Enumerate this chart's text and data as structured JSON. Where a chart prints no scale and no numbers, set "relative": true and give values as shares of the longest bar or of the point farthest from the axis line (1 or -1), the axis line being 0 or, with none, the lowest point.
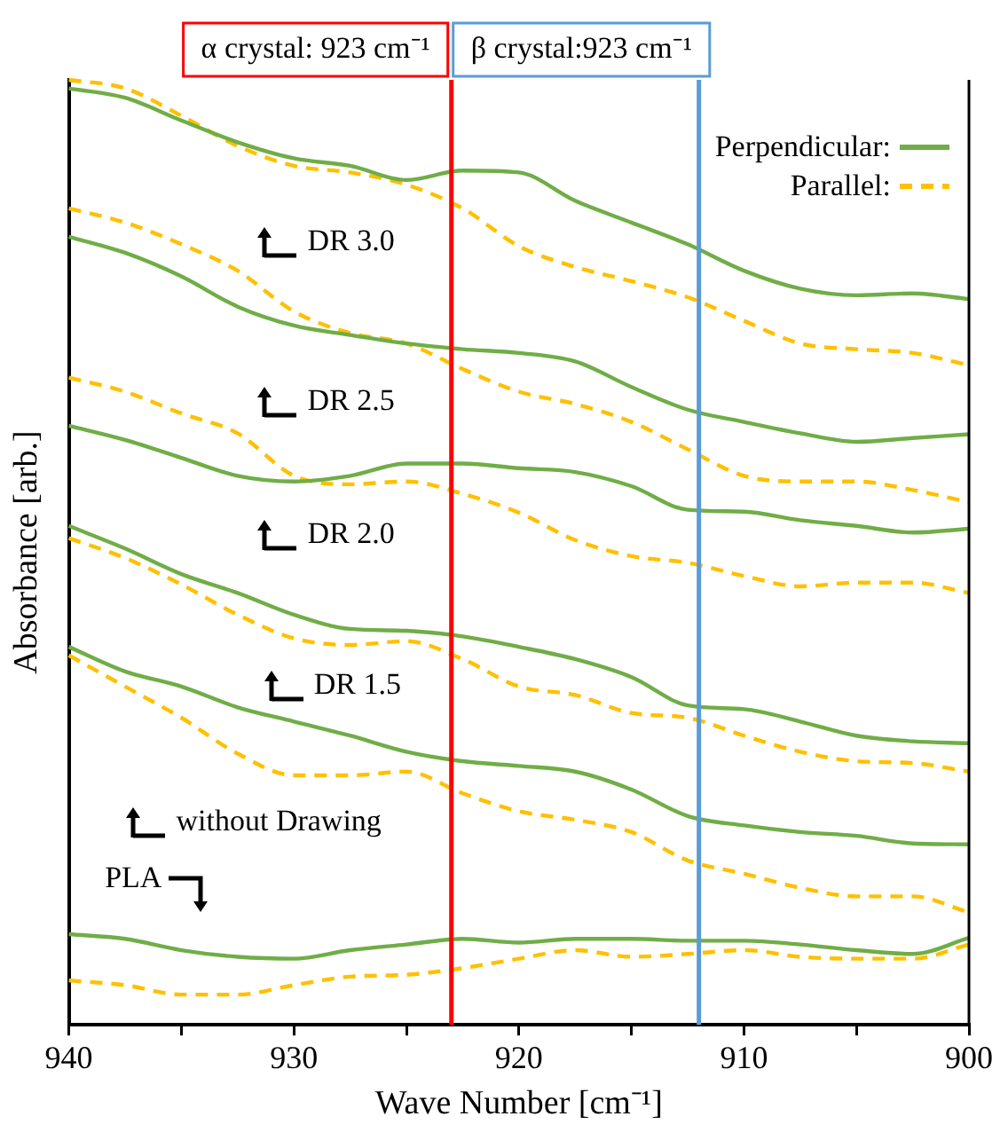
{
  "chart_data": {
    "type": "line",
    "xlabel": "Wave Number [cm⁻¹]",
    "ylabel": "Absorbance [arb.]",
    "relative": true,
    "x": [
      940,
      937.5,
      935,
      932.5,
      930,
      927.5,
      925,
      922.5,
      920,
      917.5,
      915,
      912.5,
      910,
      907.5,
      905,
      902.5,
      900
    ],
    "xlim": [
      940,
      900
    ],
    "xticks": [
      940,
      {
        "value": 935,
        "label": null
      },
      930,
      {
        "value": 925,
        "label": null
      },
      920,
      {
        "value": 915,
        "label": null
      },
      910,
      {
        "value": 905,
        "label": null
      },
      900
    ],
    "grid": false,
    "legend": "top right",
    "marker": "none",
    "series": [
      {
        "name": "Perpendicular:",
        "color": "#70ad47",
        "line_style": "solid",
        "values": [
          0.991,
          0.981,
          0.957,
          0.934,
          0.917,
          0.909,
          0.894,
          0.904,
          0.902,
          0.872,
          0.849,
          0.826,
          0.798,
          0.779,
          0.772,
          0.774,
          0.768
        ]
      },
      {
        "name": "Parallel:",
        "color": "#ffc000",
        "line_style": "dashed",
        "values": [
          1,
          0.991,
          0.962,
          0.93,
          0.909,
          0.902,
          0.889,
          0.864,
          0.824,
          0.802,
          0.787,
          0.77,
          0.745,
          0.721,
          0.715,
          0.711,
          0.698
        ]
      },
      {
        "color": "#70ad47",
        "line_style": "solid",
        "values": [
          0.834,
          0.817,
          0.792,
          0.76,
          0.74,
          0.73,
          0.721,
          0.715,
          0.711,
          0.702,
          0.675,
          0.651,
          0.638,
          0.626,
          0.617,
          0.621,
          0.625
        ]
      },
      {
        "color": "#ffc000",
        "line_style": "dashed",
        "values": [
          0.864,
          0.849,
          0.826,
          0.798,
          0.755,
          0.732,
          0.721,
          0.694,
          0.67,
          0.657,
          0.638,
          0.609,
          0.581,
          0.575,
          0.575,
          0.566,
          0.553
        ]
      },
      {
        "color": "#70ad47",
        "line_style": "solid",
        "values": [
          0.634,
          0.619,
          0.6,
          0.581,
          0.575,
          0.581,
          0.594,
          0.594,
          0.589,
          0.585,
          0.57,
          0.545,
          0.543,
          0.534,
          0.528,
          0.521,
          0.525
        ]
      },
      {
        "color": "#ffc000",
        "line_style": "dashed",
        "values": [
          0.685,
          0.67,
          0.647,
          0.626,
          0.581,
          0.572,
          0.575,
          0.562,
          0.542,
          0.513,
          0.496,
          0.489,
          0.475,
          0.464,
          0.468,
          0.468,
          0.457
        ]
      },
      {
        "color": "#70ad47",
        "line_style": "solid",
        "values": [
          0.528,
          0.504,
          0.477,
          0.457,
          0.434,
          0.419,
          0.417,
          0.411,
          0.4,
          0.387,
          0.368,
          0.338,
          0.334,
          0.321,
          0.306,
          0.3,
          0.298
        ]
      },
      {
        "color": "#ffc000",
        "line_style": "dashed",
        "values": [
          0.515,
          0.494,
          0.466,
          0.434,
          0.409,
          0.402,
          0.406,
          0.387,
          0.358,
          0.349,
          0.33,
          0.325,
          0.306,
          0.289,
          0.279,
          0.277,
          0.268
        ]
      },
      {
        "color": "#70ad47",
        "line_style": "solid",
        "values": [
          0.4,
          0.374,
          0.358,
          0.336,
          0.321,
          0.306,
          0.289,
          0.279,
          0.274,
          0.268,
          0.249,
          0.221,
          0.211,
          0.204,
          0.2,
          0.192,
          0.191
        ]
      },
      {
        "color": "#ffc000",
        "line_style": "dashed",
        "values": [
          0.391,
          0.358,
          0.325,
          0.287,
          0.264,
          0.264,
          0.268,
          0.245,
          0.226,
          0.217,
          0.204,
          0.174,
          0.16,
          0.145,
          0.136,
          0.136,
          0.119
        ]
      },
      {
        "color": "#70ad47",
        "line_style": "solid",
        "values": [
          0.096,
          0.091,
          0.079,
          0.072,
          0.07,
          0.079,
          0.085,
          0.091,
          0.087,
          0.091,
          0.091,
          0.089,
          0.089,
          0.085,
          0.079,
          0.075,
          0.092
        ]
      },
      {
        "color": "#ffc000",
        "line_style": "dashed",
        "values": [
          0.047,
          0.042,
          0.032,
          0.032,
          0.042,
          0.051,
          0.053,
          0.06,
          0.07,
          0.079,
          0.072,
          0.075,
          0.079,
          0.072,
          0.07,
          0.07,
          0.085
        ]
      }
    ],
    "ref_lines": [
      {
        "axis": "x",
        "value": 923,
        "color": "#ff0000"
      },
      {
        "axis": "x",
        "value": 912,
        "color": "#5b9bd5"
      }
    ],
    "annotations": [
      "α crystal: 923 cm⁻¹",
      "β crystal:923 cm⁻¹",
      "DR 3.0",
      "DR 2.5",
      "DR 2.0",
      "DR 1.5",
      "without Drawing",
      "PLA"
    ]
  }
}
